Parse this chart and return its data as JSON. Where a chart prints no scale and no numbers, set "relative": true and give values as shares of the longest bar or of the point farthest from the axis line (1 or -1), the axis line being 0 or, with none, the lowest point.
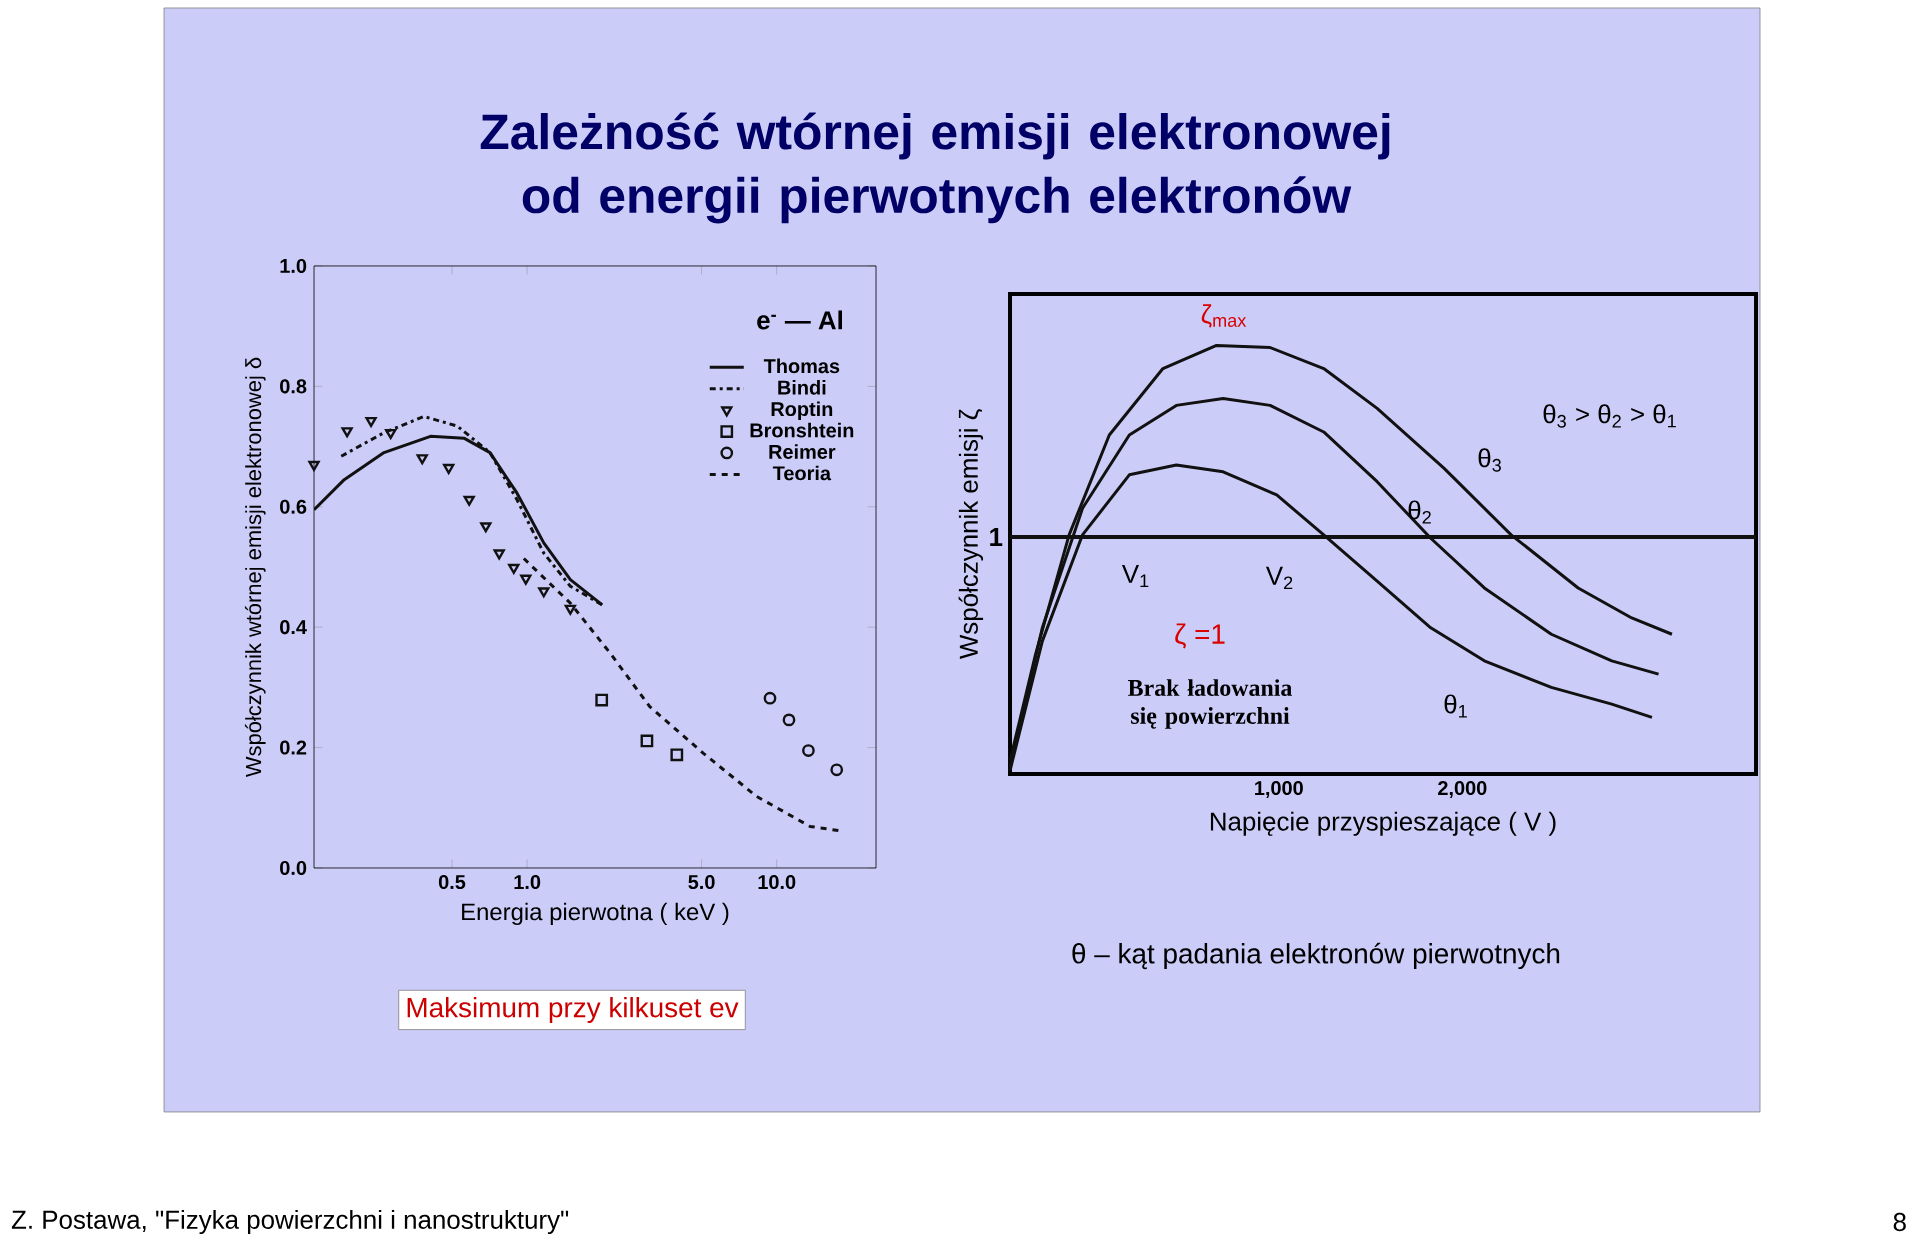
{
  "chart_data": [
    {
      "type": "line",
      "title": "Zależność wtórnej emisji elektronowej od energii pierwotnych elektronów",
      "xlabel": "Energia pierwotna ( keV )",
      "ylabel": "Współczynnik wtórnej emisji elektronowej δ",
      "log": "x",
      "xlim": [
        0.14,
        25
      ],
      "ylim": [
        0,
        1.0
      ],
      "xticks": [
        0.5,
        {
          "value": 1,
          "label": "1.0"
        },
        {
          "value": 5,
          "label": "5.0"
        },
        {
          "value": 10,
          "label": "10.0"
        }
      ],
      "yticks": [
        {
          "value": 0,
          "label": "0.0"
        },
        0.2,
        0.4,
        0.6,
        0.8,
        {
          "value": 1.0,
          "label": "1.0"
        }
      ],
      "legend": "top right",
      "series": [
        {
          "name": "Thomas",
          "color": "#111111",
          "type": "line",
          "marker": "none",
          "line_style": "solid",
          "x": [
            0.14,
            0.185,
            0.267,
            0.41,
            0.558,
            0.71,
            0.91,
            1.166,
            1.49,
            2.0
          ],
          "values": [
            0.595,
            0.645,
            0.69,
            0.717,
            0.714,
            0.69,
            0.623,
            0.54,
            0.479,
            0.437
          ]
        },
        {
          "name": "Bindi",
          "color": "#111111",
          "type": "line",
          "marker": "none",
          "line_style": "dashdot",
          "x": [
            0.18,
            0.267,
            0.386,
            0.525,
            0.71,
            0.91,
            1.166,
            1.49,
            2.0
          ],
          "values": [
            0.684,
            0.723,
            0.75,
            0.734,
            0.69,
            0.612,
            0.523,
            0.468,
            0.437
          ]
        },
        {
          "name": "Roptin",
          "color": "#111111",
          "type": "scatter",
          "marker": "triangle",
          "x": [
            0.14,
            0.19,
            0.237,
            0.284,
            0.38,
            0.485,
            0.586,
            0.683,
            0.773,
            0.884,
            0.988,
            1.166,
            1.49
          ],
          "values": [
            0.67,
            0.726,
            0.743,
            0.723,
            0.681,
            0.665,
            0.612,
            0.568,
            0.523,
            0.499,
            0.481,
            0.46,
            0.431
          ]
        },
        {
          "name": "Bronshtein",
          "color": "#111111",
          "type": "scatter",
          "marker": "square",
          "x": [
            1.99,
            3.02,
            3.98
          ],
          "values": [
            0.279,
            0.211,
            0.188
          ]
        },
        {
          "name": "Reimer",
          "color": "#111111",
          "type": "scatter",
          "marker": "circle",
          "x": [
            9.4,
            11.2,
            13.4,
            17.4
          ],
          "values": [
            0.282,
            0.246,
            0.195,
            0.163
          ]
        },
        {
          "name": "Teoria",
          "color": "#111111",
          "type": "line",
          "marker": "none",
          "line_style": "dashed",
          "x": [
            0.97,
            1.49,
            2.15,
            3.1,
            5.1,
            8.3,
            13.6,
            18.5
          ],
          "values": [
            0.514,
            0.44,
            0.357,
            0.268,
            0.19,
            0.119,
            0.069,
            0.061
          ]
        }
      ],
      "annotations": [
        "e$^{-}$ — Al",
        "Maksimum przy kilkuset ev"
      ]
    },
    {
      "type": "line",
      "relative": true,
      "xlabel": "Napięcie przyspieszające ( V )",
      "ylabel": "Współczynnik emisji ζ",
      "xlim": [
        -464,
        3600
      ],
      "xticks": [
        {
          "value": 1000,
          "label": "1,000"
        },
        {
          "value": 2000,
          "label": "2,000"
        }
      ],
      "ref_lines": [
        {
          "axis": "y",
          "value": 0.553,
          "label": "1",
          "color": "#111111"
        }
      ],
      "series": [
        {
          "color": "#111111",
          "x": [
            -464,
            -325,
            -142,
            77,
            369,
            661,
            953,
            1245,
            1536,
            1901,
            2266,
            2631,
            2923,
            3142
          ],
          "values": [
            0.031,
            0.279,
            0.558,
            0.791,
            0.946,
            1.0,
            0.995,
            0.946,
            0.853,
            0.713,
            0.558,
            0.434,
            0.364,
            0.326
          ]
        },
        {
          "color": "#111111",
          "x": [
            -464,
            -288,
            -69,
            186,
            442,
            697,
            953,
            1245,
            1536,
            1828,
            2120,
            2485,
            2814,
            3069
          ],
          "values": [
            0.016,
            0.341,
            0.62,
            0.791,
            0.86,
            0.876,
            0.86,
            0.798,
            0.682,
            0.55,
            0.434,
            0.326,
            0.264,
            0.233
          ]
        },
        {
          "color": "#111111",
          "x": [
            -464,
            -288,
            -69,
            186,
            442,
            697,
            989,
            1245,
            1536,
            1828,
            2120,
            2485,
            2814,
            3033
          ],
          "values": [
            0.008,
            0.31,
            0.558,
            0.698,
            0.721,
            0.705,
            0.651,
            0.558,
            0.45,
            0.341,
            0.264,
            0.202,
            0.163,
            0.132
          ]
        }
      ],
      "annotations": [
        "ζ$_{max}$",
        "θ$_{3}$",
        "θ$_{2}$",
        "V$_{1}$",
        "V$_{2}$",
        "ζ =1",
        "Brak ładowania się powierzchni",
        "θ$_{1}$",
        "θ$_{3}$ > θ$_{2}$ > θ$_{1}$",
        "θ – kąt padania elektronów pierwotnych",
        "Z. Postawa, \"Fizyka powierzchni i nanostruktury\"",
        "8"
      ]
    }
  ]
}
